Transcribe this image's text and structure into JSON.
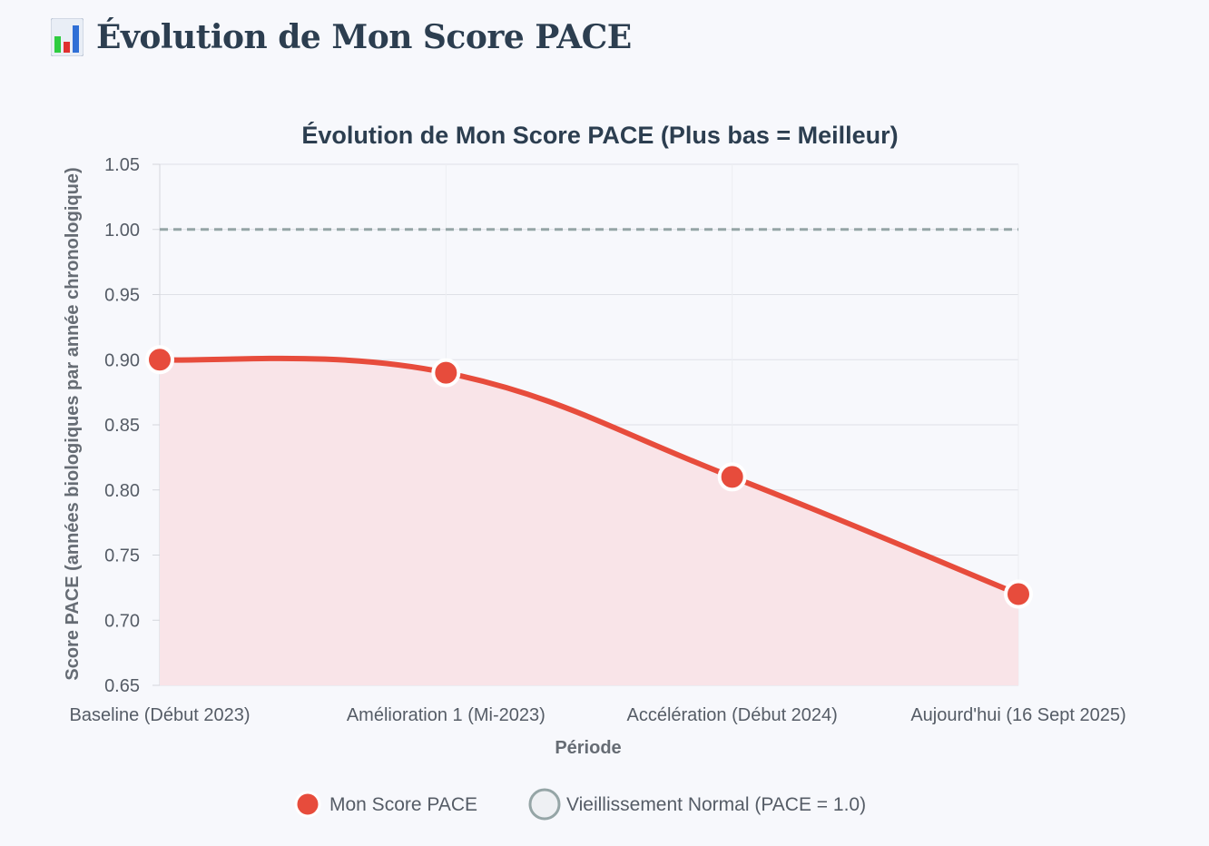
{
  "page": {
    "heading": "Évolution de Mon Score PACE",
    "heading_icon": "bar-chart-icon"
  },
  "chart_data": {
    "type": "line",
    "title": "Évolution de Mon Score PACE (Plus bas = Meilleur)",
    "xlabel": "Période",
    "ylabel": "Score PACE (années biologiques par année chronologique)",
    "categories": [
      "Baseline (Début 2023)",
      "Amélioration 1 (Mi-2023)",
      "Accélération (Début 2024)",
      "Aujourd'hui (16 Sept 2025)"
    ],
    "series": [
      {
        "name": "Mon Score PACE",
        "values": [
          0.9,
          0.89,
          0.81,
          0.72
        ],
        "color": "#e74c3c",
        "fill": "#f9e4e8",
        "smooth": true,
        "area": true
      },
      {
        "name": "Vieillissement Normal (PACE = 1.0)",
        "values": [
          1.0,
          1.0,
          1.0,
          1.0
        ],
        "color": "#95a5a6",
        "dashed": true
      }
    ],
    "ylim": [
      0.65,
      1.05
    ],
    "yticks": [
      "0.65",
      "0.70",
      "0.75",
      "0.80",
      "0.85",
      "0.90",
      "0.95",
      "1.00",
      "1.05"
    ],
    "grid": true,
    "legend_position": "bottom"
  }
}
